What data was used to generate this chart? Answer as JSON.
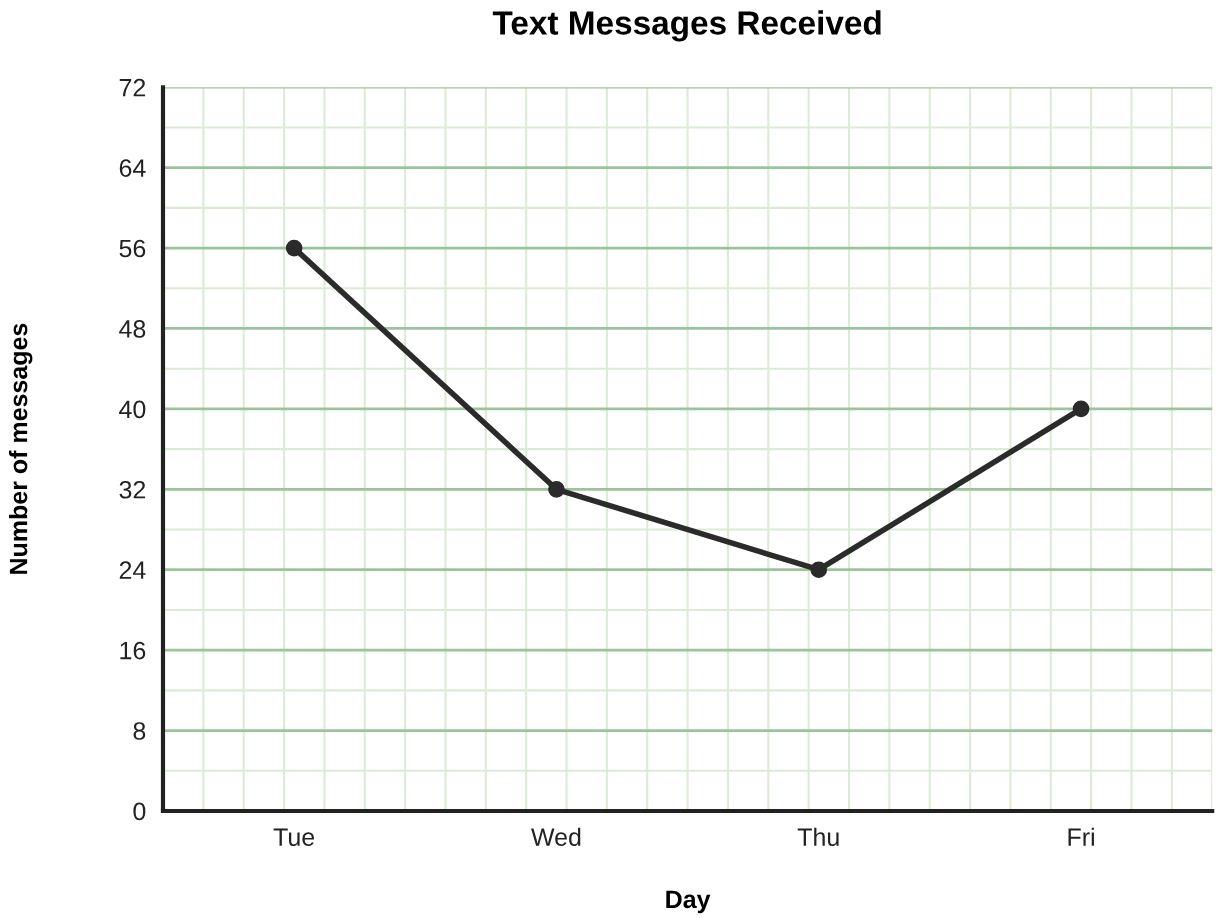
{
  "chart_data": {
    "type": "line",
    "title": "Text Messages Received",
    "xlabel": "Day",
    "ylabel": "Number of messages",
    "categories": [
      "Tue",
      "Wed",
      "Thu",
      "Fri"
    ],
    "series": [
      {
        "color": "#2b2b2b",
        "values": [
          56,
          32,
          24,
          40
        ]
      }
    ],
    "ylim": [
      0,
      72
    ],
    "yticks": [
      0,
      8,
      16,
      24,
      32,
      40,
      48,
      56,
      64,
      72
    ],
    "grid": true,
    "marker": "circle",
    "line_style": "solid"
  }
}
